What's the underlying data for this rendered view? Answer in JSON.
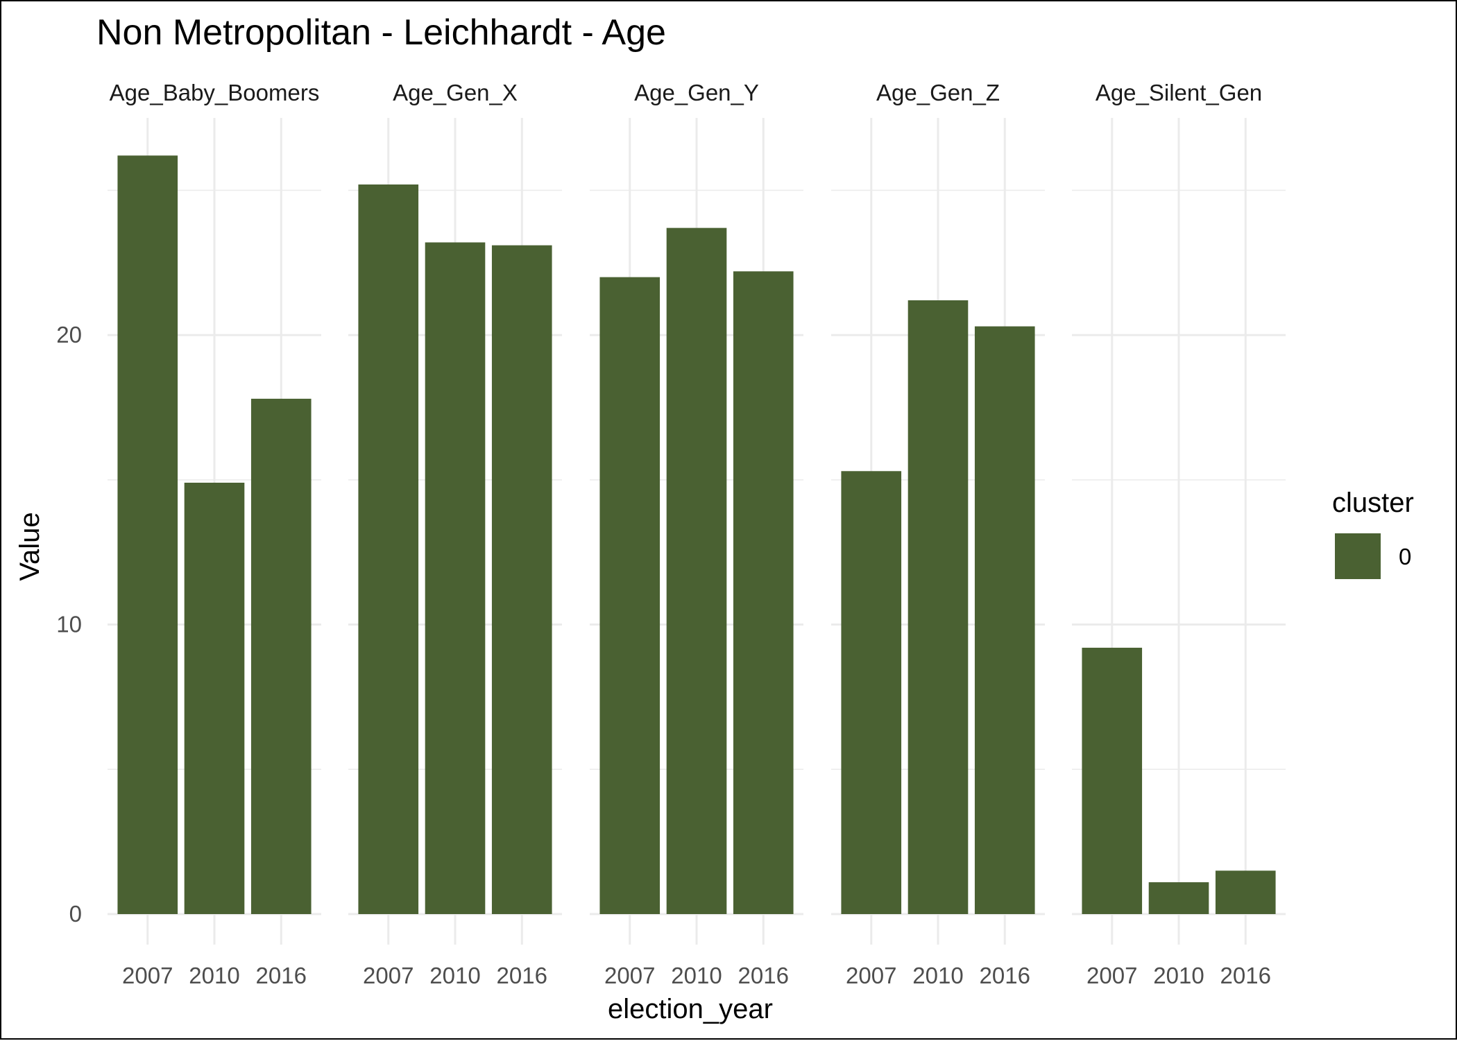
{
  "chart_data": {
    "type": "bar",
    "title": "Non Metropolitan - Leichhardt - Age",
    "xlabel": "election_year",
    "ylabel": "Value",
    "ylim": [
      0,
      27.5
    ],
    "yticks": [
      0,
      10,
      20
    ],
    "grid": true,
    "categories": [
      "2007",
      "2010",
      "2016"
    ],
    "facets": [
      {
        "name": "Age_Baby_Boomers",
        "values": [
          26.2,
          14.9,
          17.8
        ]
      },
      {
        "name": "Age_Gen_X",
        "values": [
          25.2,
          23.2,
          23.1
        ]
      },
      {
        "name": "Age_Gen_Y",
        "values": [
          22.0,
          23.7,
          22.2
        ]
      },
      {
        "name": "Age_Gen_Z",
        "values": [
          15.3,
          21.2,
          20.3
        ]
      },
      {
        "name": "Age_Silent_Gen",
        "values": [
          9.2,
          1.1,
          1.5
        ]
      }
    ],
    "legend": {
      "title": "cluster",
      "position": "right",
      "entries": [
        {
          "label": "0",
          "color": "#4a6132"
        }
      ]
    },
    "bar_color": "#4a6132"
  }
}
